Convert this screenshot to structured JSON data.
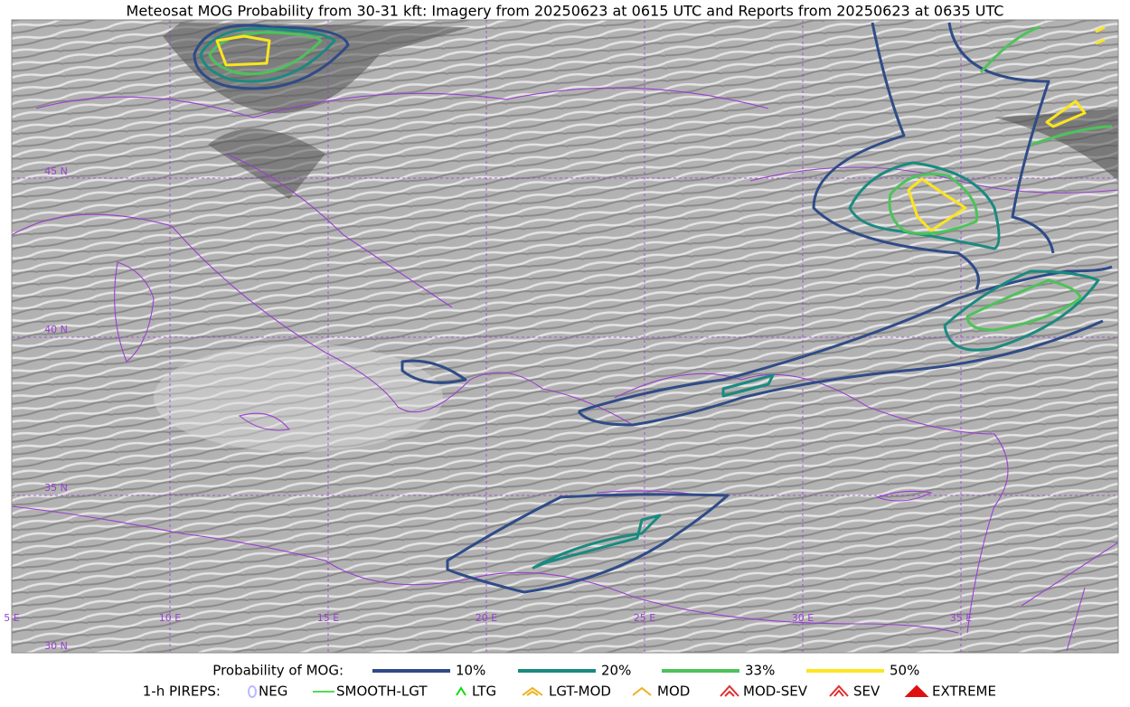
{
  "title": "Meteosat MOG Probability from 30-31 kft: Imagery from 20250623 at 0615 UTC and Reports from 20250623 at 0635 UTC",
  "grid": {
    "longitudes": [
      "5 E",
      "10 E",
      "15 E",
      "20 E",
      "25 E",
      "30 E",
      "35 E"
    ],
    "latitudes": [
      "45 N",
      "40 N",
      "35 N",
      "30 N"
    ]
  },
  "legend": {
    "probability_title": "Probability of MOG:",
    "probability_levels": [
      {
        "label": "10%",
        "color": "#2f4b87"
      },
      {
        "label": "20%",
        "color": "#1a8a80"
      },
      {
        "label": "33%",
        "color": "#4cc35a"
      },
      {
        "label": "50%",
        "color": "#fde51f"
      }
    ],
    "pireps_title": "1-h PIREPS:",
    "pireps": [
      {
        "label": "NEG",
        "color": "#b9b9ff"
      },
      {
        "label": "SMOOTH-LGT",
        "color": "#22cc22"
      },
      {
        "label": "LTG",
        "color": "#11dd11"
      },
      {
        "label": "LGT-MOD",
        "color": "#f0b020"
      },
      {
        "label": "MOD",
        "color": "#f0b020"
      },
      {
        "label": "MOD-SEV",
        "color": "#e03030"
      },
      {
        "label": "SEV",
        "color": "#e03030"
      },
      {
        "label": "EXTREME",
        "color": "#e01010"
      }
    ]
  }
}
